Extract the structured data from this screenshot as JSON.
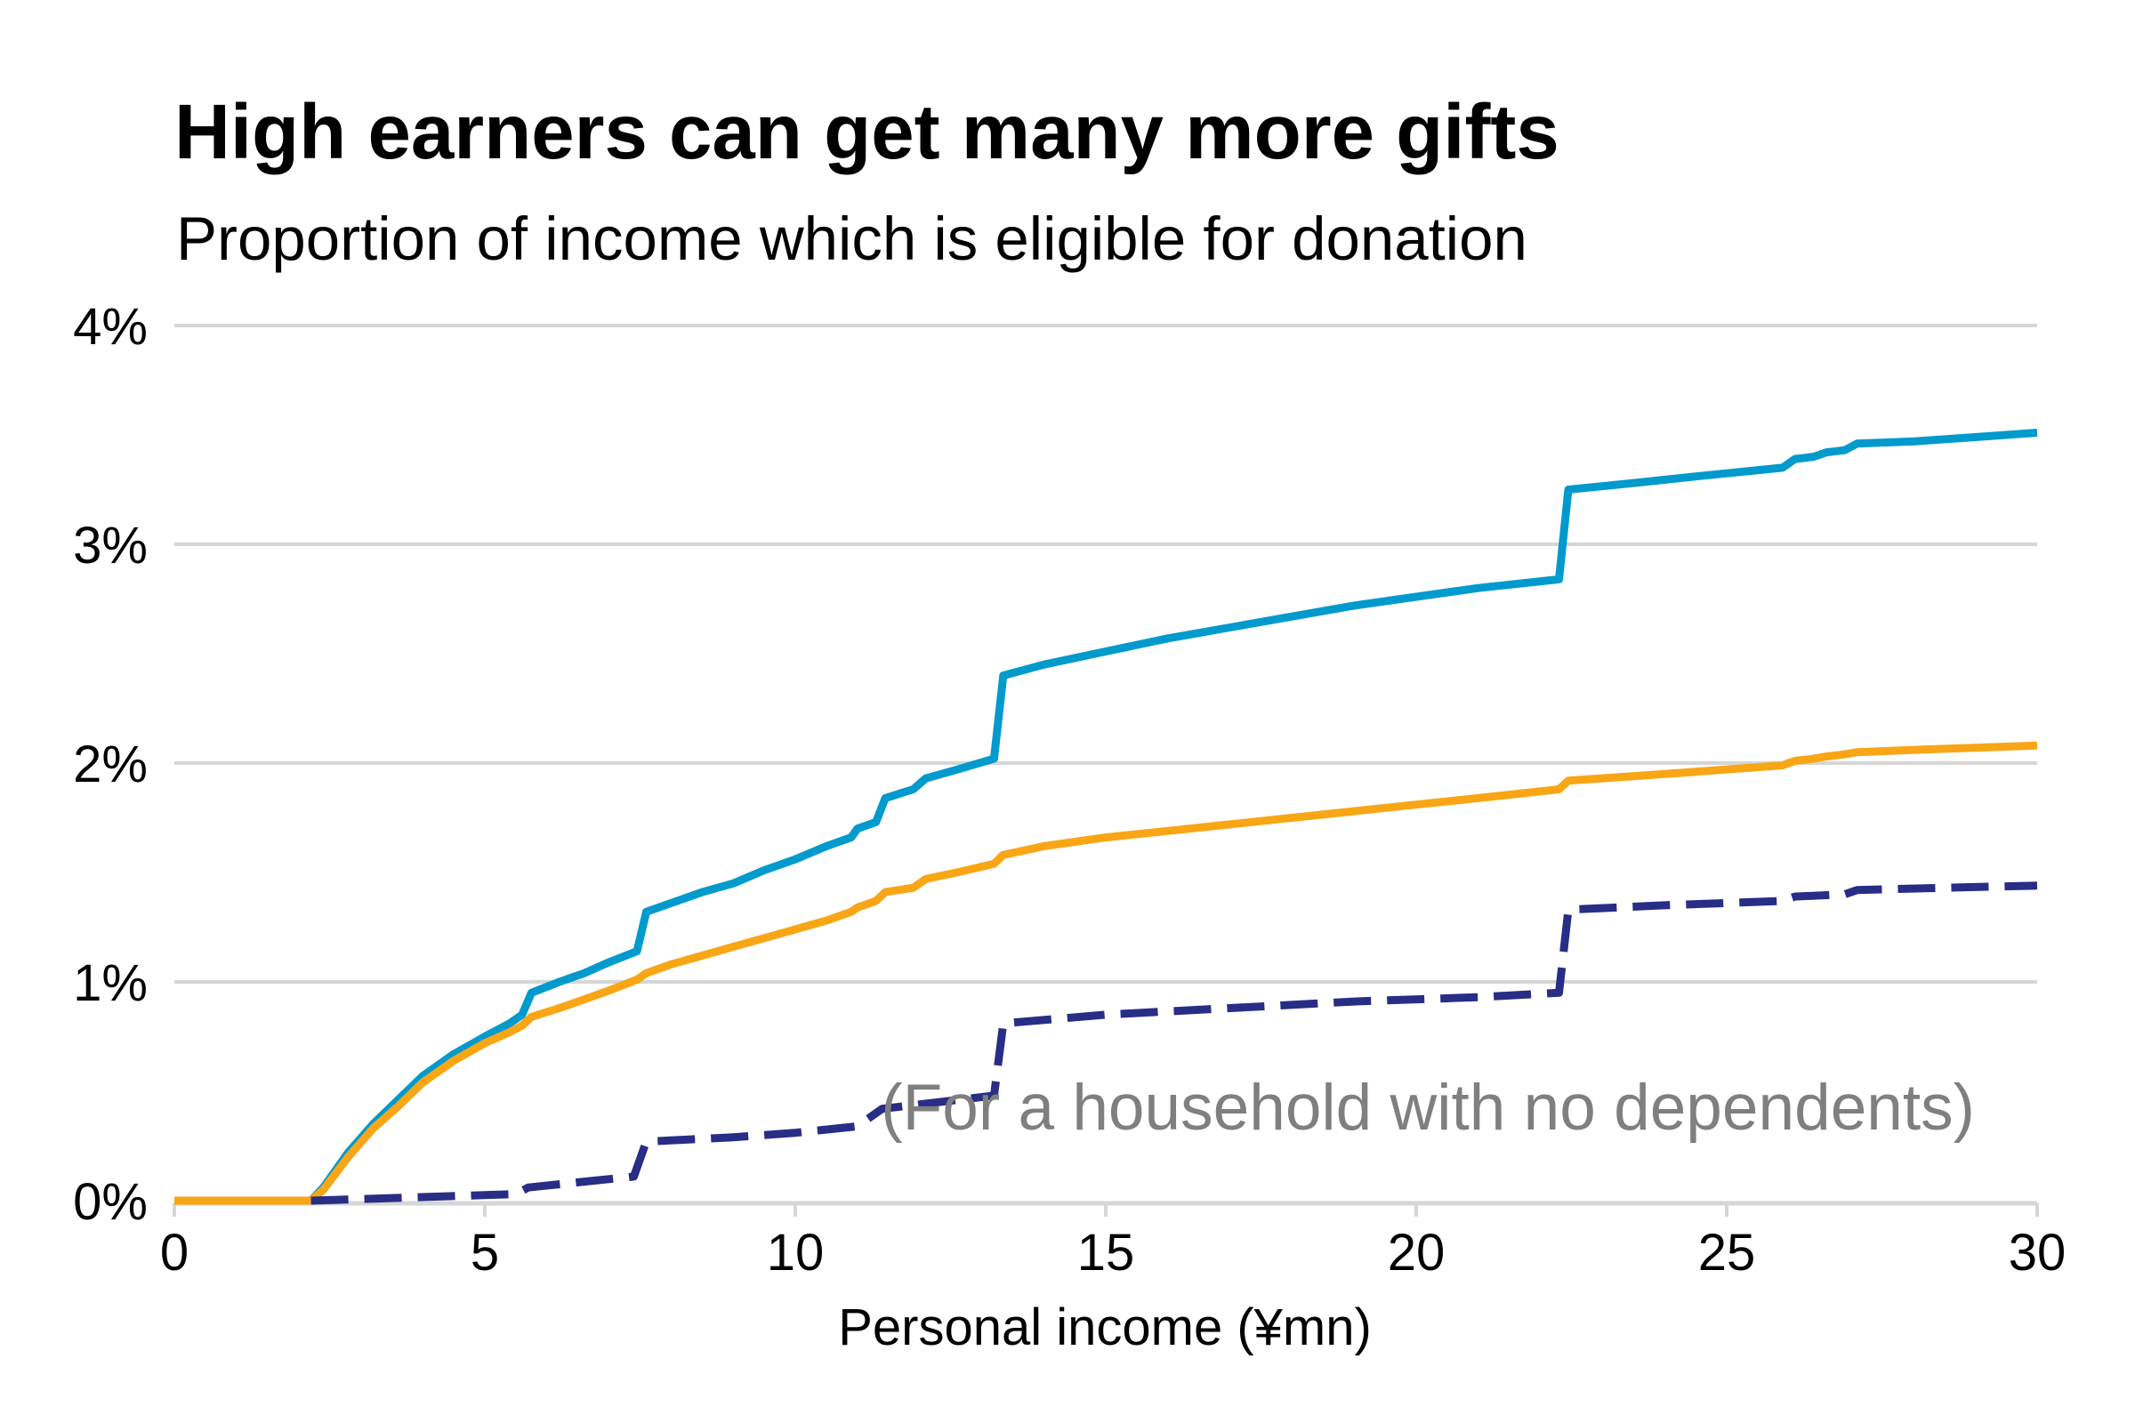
{
  "chart_data": {
    "type": "line",
    "title": "High earners can get many more gifts",
    "subtitle": "Proportion of income which is eligible for donation",
    "xlabel": "Personal income (¥mn)",
    "ylabel": "",
    "xlim": [
      0,
      30
    ],
    "ylim": [
      0,
      4
    ],
    "x_ticks": [
      0,
      5,
      10,
      15,
      20,
      25,
      30
    ],
    "x_tick_labels": [
      "0",
      "5",
      "10",
      "15",
      "20",
      "25",
      "30"
    ],
    "y_ticks": [
      0,
      1,
      2,
      3,
      4
    ],
    "y_tick_labels": [
      "0%",
      "1%",
      "2%",
      "3%",
      "4%"
    ],
    "grid": true,
    "legend": "none",
    "annotation": "(For a household with no dependents)",
    "series": [
      {
        "color": "#009ACD",
        "style": "solid",
        "points": [
          [
            0,
            0.0
          ],
          [
            2.2,
            0.0
          ],
          [
            2.4,
            0.06
          ],
          [
            2.8,
            0.22
          ],
          [
            3.2,
            0.35
          ],
          [
            3.6,
            0.46
          ],
          [
            4.0,
            0.57
          ],
          [
            4.5,
            0.67
          ],
          [
            5.0,
            0.75
          ],
          [
            5.4,
            0.81
          ],
          [
            5.6,
            0.85
          ],
          [
            5.75,
            0.95
          ],
          [
            6.2,
            1.0
          ],
          [
            6.6,
            1.04
          ],
          [
            7.0,
            1.09
          ],
          [
            7.45,
            1.14
          ],
          [
            7.6,
            1.32
          ],
          [
            8.0,
            1.36
          ],
          [
            8.5,
            1.41
          ],
          [
            9.0,
            1.45
          ],
          [
            9.5,
            1.51
          ],
          [
            10.0,
            1.56
          ],
          [
            10.5,
            1.62
          ],
          [
            10.9,
            1.66
          ],
          [
            11.0,
            1.7
          ],
          [
            11.3,
            1.73
          ],
          [
            11.45,
            1.84
          ],
          [
            11.9,
            1.88
          ],
          [
            12.1,
            1.93
          ],
          [
            12.6,
            1.97
          ],
          [
            13.2,
            2.02
          ],
          [
            13.35,
            2.4
          ],
          [
            14.0,
            2.45
          ],
          [
            15.0,
            2.51
          ],
          [
            16.0,
            2.57
          ],
          [
            17.0,
            2.62
          ],
          [
            18.0,
            2.67
          ],
          [
            19.0,
            2.72
          ],
          [
            20.0,
            2.76
          ],
          [
            21.0,
            2.8
          ],
          [
            22.3,
            2.84
          ],
          [
            22.45,
            3.25
          ],
          [
            23.5,
            3.28
          ],
          [
            24.5,
            3.31
          ],
          [
            25.9,
            3.35
          ],
          [
            26.1,
            3.39
          ],
          [
            26.4,
            3.4
          ],
          [
            26.6,
            3.42
          ],
          [
            26.9,
            3.43
          ],
          [
            27.1,
            3.46
          ],
          [
            28.0,
            3.47
          ],
          [
            29.0,
            3.49
          ],
          [
            30.0,
            3.51
          ]
        ]
      },
      {
        "color": "#F8A616",
        "style": "solid",
        "points": [
          [
            0,
            0.0
          ],
          [
            2.2,
            0.0
          ],
          [
            2.4,
            0.05
          ],
          [
            2.8,
            0.2
          ],
          [
            3.2,
            0.33
          ],
          [
            3.6,
            0.43
          ],
          [
            4.0,
            0.54
          ],
          [
            4.5,
            0.64
          ],
          [
            5.0,
            0.72
          ],
          [
            5.4,
            0.77
          ],
          [
            5.6,
            0.8
          ],
          [
            5.75,
            0.84
          ],
          [
            6.2,
            0.88
          ],
          [
            6.6,
            0.92
          ],
          [
            7.0,
            0.96
          ],
          [
            7.45,
            1.01
          ],
          [
            7.6,
            1.04
          ],
          [
            8.0,
            1.08
          ],
          [
            8.5,
            1.12
          ],
          [
            9.0,
            1.16
          ],
          [
            9.5,
            1.2
          ],
          [
            10.0,
            1.24
          ],
          [
            10.5,
            1.28
          ],
          [
            10.9,
            1.32
          ],
          [
            11.0,
            1.34
          ],
          [
            11.3,
            1.37
          ],
          [
            11.45,
            1.41
          ],
          [
            11.9,
            1.43
          ],
          [
            12.1,
            1.47
          ],
          [
            12.6,
            1.5
          ],
          [
            13.2,
            1.54
          ],
          [
            13.35,
            1.58
          ],
          [
            14.0,
            1.62
          ],
          [
            15.0,
            1.66
          ],
          [
            16.0,
            1.69
          ],
          [
            17.0,
            1.72
          ],
          [
            18.0,
            1.75
          ],
          [
            19.0,
            1.78
          ],
          [
            20.0,
            1.81
          ],
          [
            21.0,
            1.84
          ],
          [
            22.3,
            1.88
          ],
          [
            22.45,
            1.92
          ],
          [
            23.5,
            1.94
          ],
          [
            24.5,
            1.96
          ],
          [
            25.9,
            1.99
          ],
          [
            26.1,
            2.01
          ],
          [
            26.4,
            2.02
          ],
          [
            26.6,
            2.03
          ],
          [
            26.9,
            2.04
          ],
          [
            27.1,
            2.05
          ],
          [
            28.0,
            2.06
          ],
          [
            29.0,
            2.07
          ],
          [
            30.0,
            2.08
          ]
        ]
      },
      {
        "color": "#282D86",
        "style": "dashed",
        "points": [
          [
            2.2,
            0.0
          ],
          [
            5.5,
            0.03
          ],
          [
            5.7,
            0.06
          ],
          [
            7.4,
            0.11
          ],
          [
            7.6,
            0.27
          ],
          [
            9.0,
            0.29
          ],
          [
            10.0,
            0.31
          ],
          [
            11.0,
            0.34
          ],
          [
            11.4,
            0.42
          ],
          [
            13.2,
            0.48
          ],
          [
            13.35,
            0.81
          ],
          [
            15.0,
            0.85
          ],
          [
            17.0,
            0.88
          ],
          [
            19.0,
            0.91
          ],
          [
            21.0,
            0.93
          ],
          [
            22.3,
            0.95
          ],
          [
            22.45,
            1.33
          ],
          [
            24.0,
            1.35
          ],
          [
            25.9,
            1.37
          ],
          [
            26.1,
            1.39
          ],
          [
            26.9,
            1.4
          ],
          [
            27.1,
            1.42
          ],
          [
            28.5,
            1.43
          ],
          [
            30.0,
            1.44
          ]
        ]
      }
    ]
  }
}
